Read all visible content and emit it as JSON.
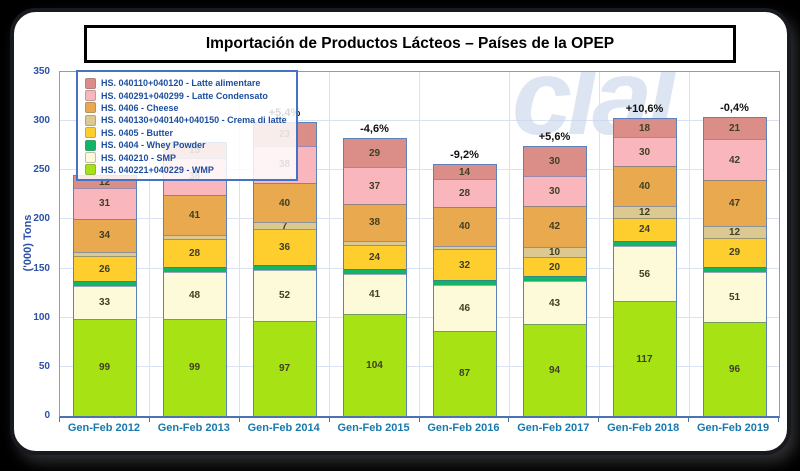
{
  "title": "Importación de Productos Lácteos – Países de la OPEP",
  "watermark": "clal",
  "chart_data": {
    "type": "bar",
    "stacked": true,
    "title": "Importación de Productos Lácteos – Países de la OPEP",
    "xlabel": "",
    "ylabel": "('000) Tons",
    "ylim": [
      0,
      350
    ],
    "yticks": [
      0,
      50,
      100,
      150,
      200,
      250,
      300,
      350
    ],
    "grid": true,
    "legend_position": "top-left",
    "categories": [
      "Gen-Feb 2012",
      "Gen-Feb 2013",
      "Gen-Feb 2014",
      "Gen-Feb 2015",
      "Gen-Feb 2016",
      "Gen-Feb 2017",
      "Gen-Feb 2018",
      "Gen-Feb 2019"
    ],
    "pct_change_labels": [
      "",
      "",
      "+5,4%",
      "-4,6%",
      "-9,2%",
      "+5,6%",
      "+10,6%",
      "-0,4%"
    ],
    "series": [
      {
        "name": "HS. 040221+040229 - WMP",
        "color": "#a6e214",
        "label_min": 6,
        "values": [
          99,
          99,
          97,
          104,
          87,
          94,
          117,
          96
        ]
      },
      {
        "name": "HS. 040210 - SMP",
        "color": "#fdfada",
        "label_min": 6,
        "values": [
          33,
          48,
          52,
          41,
          46,
          43,
          56,
          51
        ]
      },
      {
        "name": "HS. 0404 - Whey Powder",
        "color": "#12b465",
        "label_min": 999,
        "values": [
          5,
          5,
          5,
          5,
          5,
          5,
          5,
          5
        ]
      },
      {
        "name": "HS. 0405 - Butter",
        "color": "#fdce2e",
        "label_min": 6,
        "values": [
          26,
          28,
          36,
          24,
          32,
          20,
          24,
          29
        ]
      },
      {
        "name": "HS. 040130+040140+040150 - Crema di latte",
        "color": "#dcc992",
        "label_min": 7,
        "values": [
          4,
          4,
          7,
          4,
          3,
          10,
          12,
          12
        ]
      },
      {
        "name": "HS. 0406 - Cheese",
        "color": "#e9a94f",
        "label_min": 6,
        "values": [
          34,
          41,
          40,
          38,
          40,
          42,
          40,
          47
        ]
      },
      {
        "name": "HS. 040291+040299 - Latte Condensato",
        "color": "#f9b6bd",
        "label_min": 6,
        "values": [
          31,
          38,
          38,
          37,
          28,
          30,
          30,
          42
        ]
      },
      {
        "name": "HS. 040110+040120 - Latte alimentare",
        "color": "#db8e88",
        "label_min": 6,
        "values": [
          12,
          15,
          23,
          29,
          14,
          30,
          18,
          21
        ]
      }
    ]
  },
  "legend": {
    "items": [
      {
        "label": "HS. 040110+040120 - Latte alimentare",
        "color": "#db8e88"
      },
      {
        "label": "HS. 040291+040299 - Latte Condensato",
        "color": "#f9b6bd"
      },
      {
        "label": "HS. 0406 - Cheese",
        "color": "#e9a94f"
      },
      {
        "label": "HS. 040130+040140+040150 - Crema di latte",
        "color": "#dcc992"
      },
      {
        "label": "HS. 0405 - Butter",
        "color": "#fdce2e"
      },
      {
        "label": "HS. 0404 - Whey Powder",
        "color": "#12b465"
      },
      {
        "label": "HS. 040210 - SMP",
        "color": "#fdfada"
      },
      {
        "label": "HS. 040221+040229 - WMP",
        "color": "#a6e214"
      }
    ]
  }
}
